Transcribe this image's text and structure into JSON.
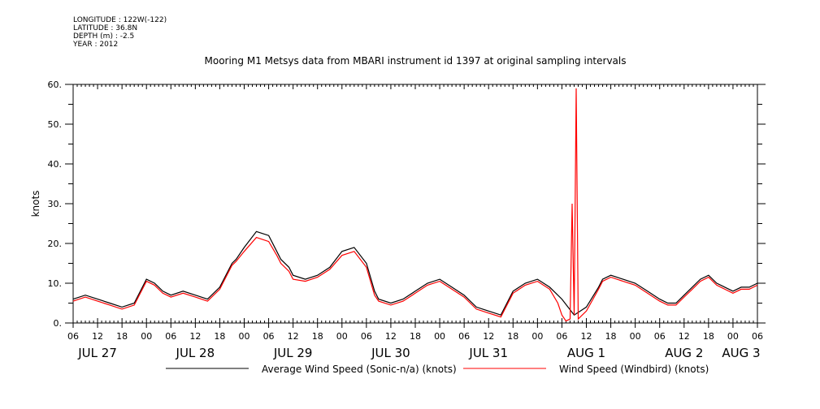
{
  "metadata": {
    "longitude": "LONGITUDE : 122W(-122)",
    "latitude": "LATITUDE : 36.8N",
    "depth": "DEPTH (m) : -2.5",
    "year": "YEAR : 2012"
  },
  "chart_data": {
    "type": "line",
    "title": "Mooring M1 Metsys data from MBARI instrument id 1397 at original sampling intervals",
    "ylabel": "knots",
    "xlabel": "",
    "ylim": [
      0,
      60
    ],
    "yticks": [
      "0.",
      "10.",
      "20.",
      "30.",
      "40.",
      "50.",
      "60."
    ],
    "xlim_hours": [
      0,
      168
    ],
    "hour_ticks": [
      "06",
      "12",
      "18",
      "00",
      "06",
      "12",
      "18",
      "00",
      "06",
      "12",
      "18",
      "00",
      "06",
      "12",
      "18",
      "00",
      "06",
      "12",
      "18",
      "00",
      "06",
      "12",
      "18",
      "00",
      "06",
      "12",
      "18",
      "00",
      "06"
    ],
    "day_labels": [
      "JUL 27",
      "JUL 28",
      "JUL 29",
      "JUL 30",
      "JUL 31",
      "AUG 1",
      "AUG 2",
      "AUG 3"
    ],
    "grid": false,
    "legend_position": "bottom",
    "series": [
      {
        "name": "Average Wind Speed (Sonic-n/a) (knots)",
        "color": "#000000",
        "x": [
          0,
          3,
          6,
          9,
          12,
          15,
          17,
          18,
          20,
          22,
          24,
          27,
          30,
          33,
          36,
          39,
          40,
          42,
          45,
          48,
          50,
          51,
          53,
          54,
          57,
          60,
          63,
          66,
          69,
          72,
          74,
          75,
          78,
          81,
          84,
          87,
          90,
          93,
          96,
          99,
          102,
          105,
          108,
          111,
          114,
          117,
          120,
          123,
          126,
          129,
          130,
          132,
          135,
          138,
          141,
          144,
          146,
          148,
          150,
          152,
          154,
          156,
          158,
          160,
          162,
          164,
          166,
          168
        ],
        "y": [
          6,
          7,
          6,
          5,
          4,
          5,
          9,
          11,
          10,
          8,
          7,
          8,
          7,
          6,
          9,
          15,
          16,
          19,
          23,
          22,
          18,
          16,
          14,
          12,
          11,
          12,
          14,
          18,
          19,
          15,
          8,
          6,
          5,
          6,
          8,
          10,
          11,
          9,
          7,
          4,
          3,
          2,
          8,
          10,
          11,
          9,
          6,
          2,
          4,
          9,
          11,
          12,
          11,
          10,
          8,
          6,
          5,
          5,
          7,
          9,
          11,
          12,
          10,
          9,
          8,
          9,
          9,
          10
        ]
      },
      {
        "name": "Wind Speed (Windbird) (knots)",
        "color": "#ff0000",
        "x": [
          0,
          3,
          6,
          9,
          12,
          15,
          17,
          18,
          20,
          22,
          24,
          27,
          30,
          33,
          36,
          39,
          40,
          42,
          45,
          48,
          50,
          51,
          53,
          54,
          57,
          60,
          63,
          66,
          69,
          72,
          74,
          75,
          78,
          81,
          84,
          87,
          90,
          93,
          96,
          99,
          102,
          105,
          108,
          111,
          114,
          117,
          119,
          120,
          121,
          122,
          122.5,
          123,
          123.5,
          124,
          126,
          129,
          130,
          132,
          135,
          138,
          141,
          144,
          146,
          148,
          150,
          152,
          154,
          156,
          158,
          160,
          162,
          164,
          166,
          168
        ],
        "y": [
          5.5,
          6.5,
          5.5,
          4.5,
          3.5,
          4.5,
          8.5,
          10.5,
          9.5,
          7.5,
          6.5,
          7.5,
          6.5,
          5.5,
          8.5,
          14.5,
          15.5,
          18,
          21.5,
          20.5,
          17,
          15,
          13,
          11,
          10.5,
          11.5,
          13.5,
          17,
          18,
          14,
          7,
          5.5,
          4.5,
          5.5,
          7.5,
          9.5,
          10.5,
          8.5,
          6.5,
          3.5,
          2.5,
          1.5,
          7.5,
          9.5,
          10.5,
          8.5,
          5,
          2,
          0.5,
          1,
          30,
          2,
          59,
          1,
          3,
          8.5,
          10.5,
          11.5,
          10.5,
          9.5,
          7.5,
          5.5,
          4.5,
          4.5,
          6.5,
          8.5,
          10.5,
          11.5,
          9.5,
          8.5,
          7.5,
          8.5,
          8.5,
          9.5
        ]
      }
    ]
  }
}
